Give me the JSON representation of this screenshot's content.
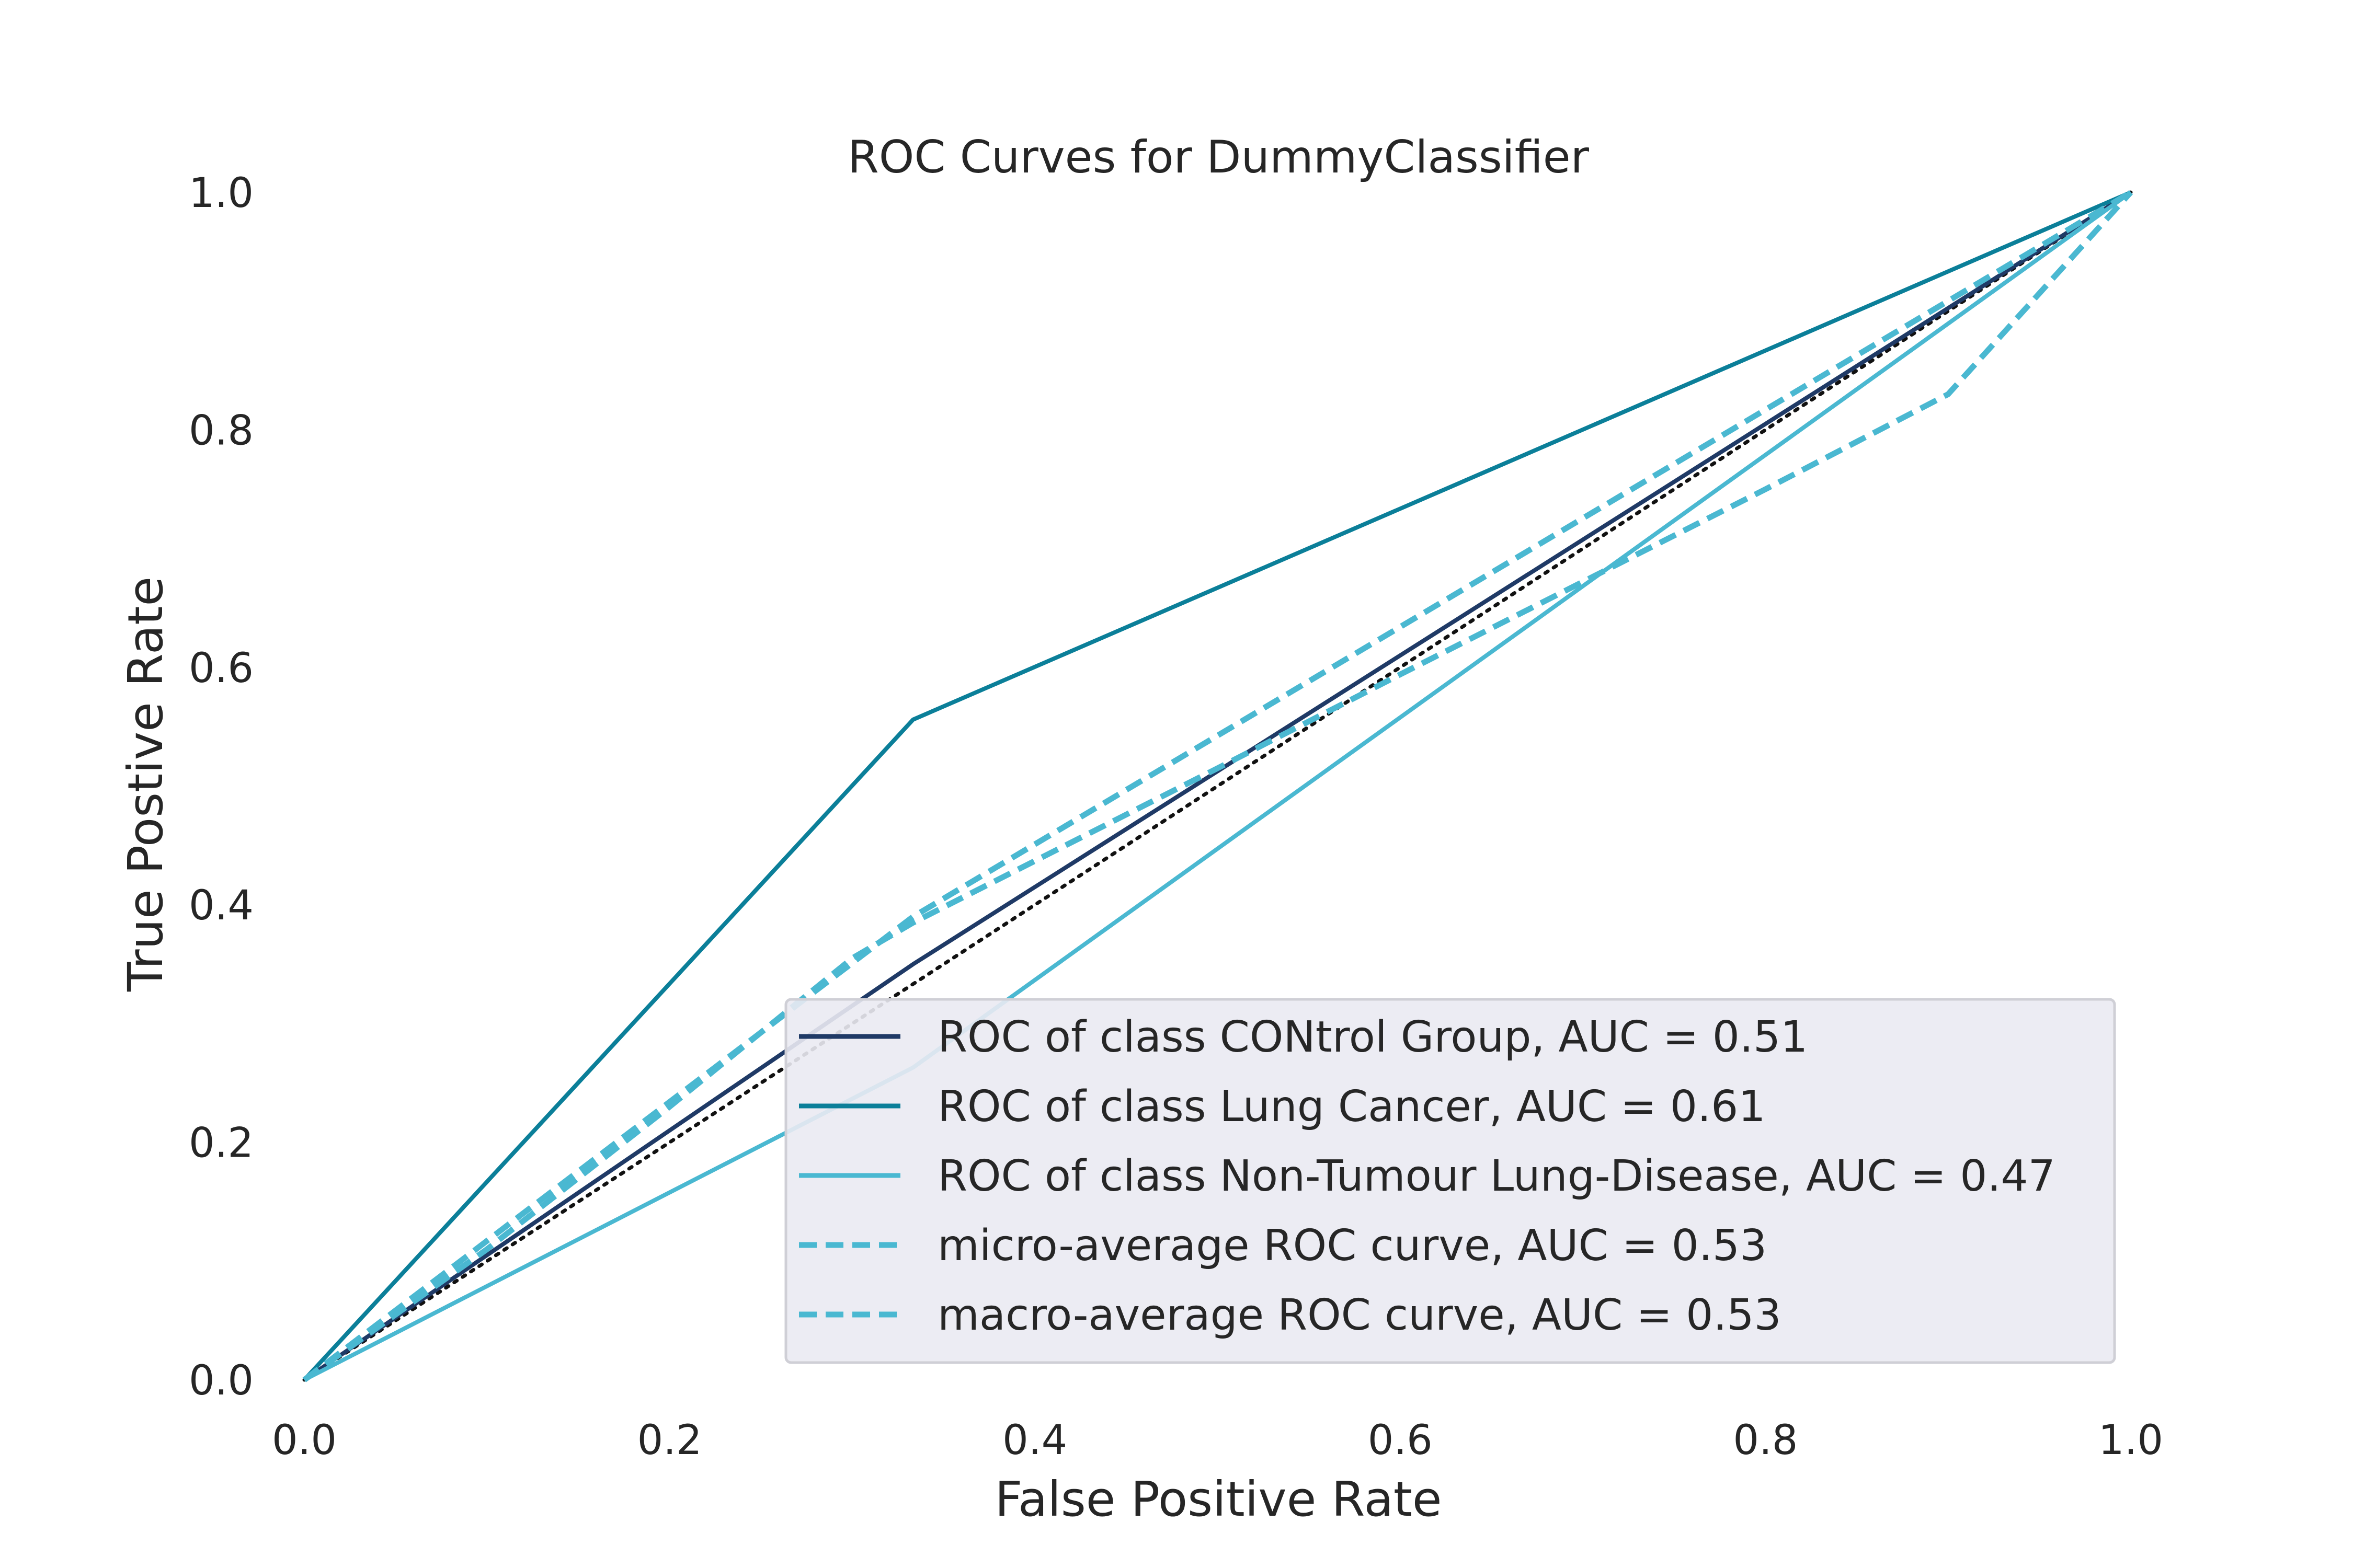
{
  "chart_data": {
    "type": "line",
    "title": "ROC Curves for DummyClassifier",
    "xlabel": "False Positive Rate",
    "ylabel": "True Postive Rate",
    "xlim": [
      0.0,
      1.0
    ],
    "ylim": [
      0.0,
      1.0
    ],
    "xticks": [
      "0.0",
      "0.2",
      "0.4",
      "0.6",
      "0.8",
      "1.0"
    ],
    "yticks": [
      "0.0",
      "0.2",
      "0.4",
      "0.6",
      "0.8",
      "1.0"
    ],
    "grid": false,
    "legend_position": "lower-right",
    "series": [
      {
        "name": "ROC of class CONtrol Group, AUC = 0.51",
        "color": "#1f3a66",
        "style": "solid",
        "x": [
          0.0,
          0.3333,
          1.0
        ],
        "y": [
          0.0,
          0.35,
          1.0
        ]
      },
      {
        "name": "ROC of class Lung Cancer, AUC = 0.61",
        "color": "#0b7f99",
        "style": "solid",
        "x": [
          0.0,
          0.3333,
          1.0
        ],
        "y": [
          0.0,
          0.556,
          1.0
        ]
      },
      {
        "name": "ROC of class Non-Tumour Lung-Disease, AUC = 0.47",
        "color": "#4ab8d1",
        "style": "solid",
        "x": [
          0.0,
          0.3333,
          1.0
        ],
        "y": [
          0.0,
          0.263,
          1.0
        ]
      },
      {
        "name": "micro-average ROC curve, AUC = 0.53",
        "color": "#4ab8d1",
        "style": "dashed",
        "x": [
          0.0,
          0.3333,
          1.0
        ],
        "y": [
          0.0,
          0.39,
          1.0
        ]
      },
      {
        "name": "macro-average ROC curve, AUC = 0.53",
        "color": "#4ab8d1",
        "style": "dashed",
        "x": [
          0.0,
          0.1,
          0.2,
          0.3,
          0.3333,
          0.4,
          0.5,
          0.6,
          0.7,
          0.8,
          0.9,
          1.0
        ],
        "y": [
          0.0,
          0.11,
          0.23,
          0.355,
          0.385,
          0.437,
          0.515,
          0.594,
          0.672,
          0.75,
          0.83,
          1.0
        ]
      },
      {
        "name": "chance",
        "color": "#111111",
        "style": "dotted",
        "show_in_legend": false,
        "x": [
          0.0,
          1.0
        ],
        "y": [
          0.0,
          1.0
        ]
      }
    ]
  }
}
